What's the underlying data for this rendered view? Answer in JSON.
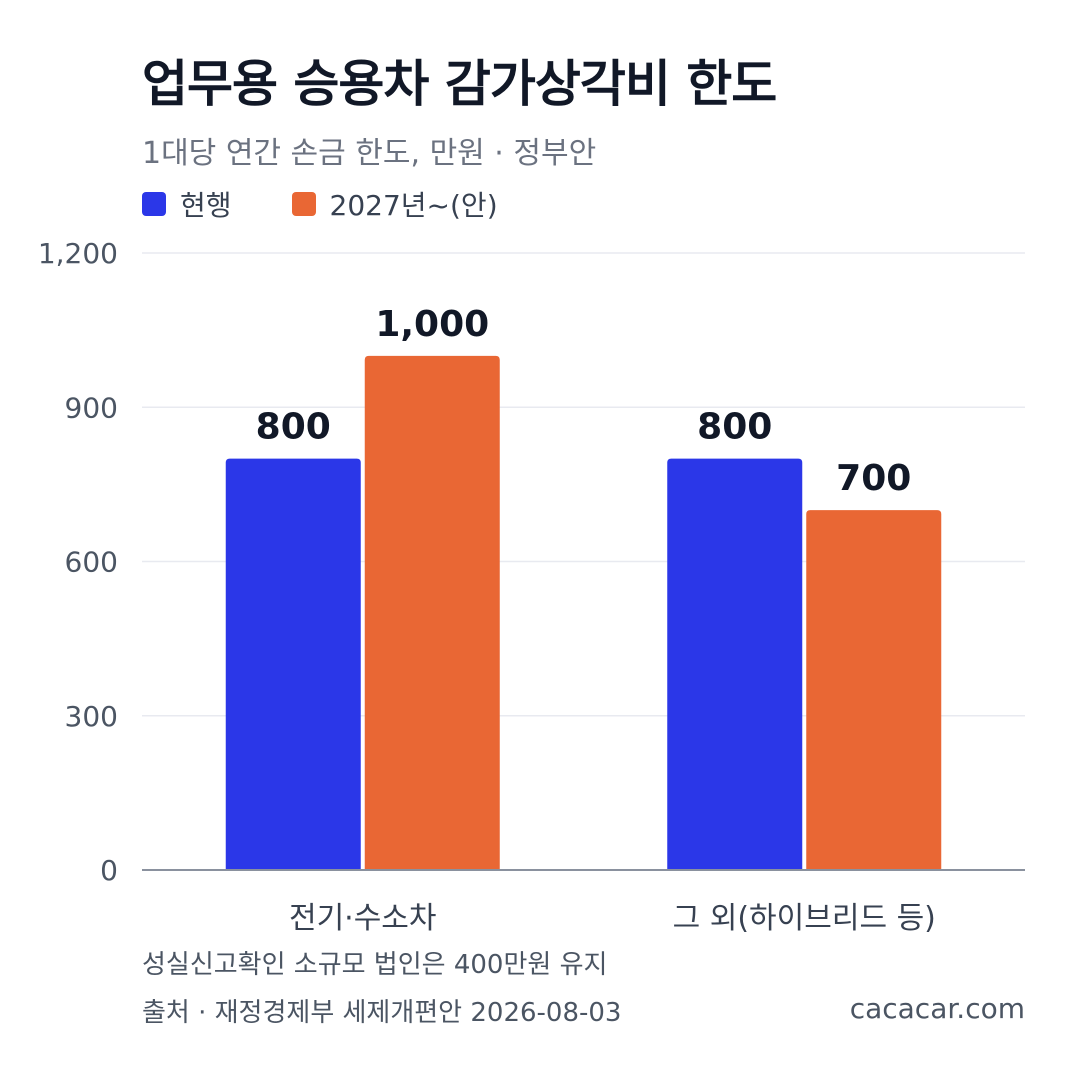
{
  "title": "업무용 승용차 감가상각비 한도",
  "subtitle": "1대당 연간 손금 한도, 만원 · 정부안",
  "legend": [
    {
      "label": "현행",
      "color": "#2b37e8"
    },
    {
      "label": "2027년~(안)",
      "color": "#e96734"
    }
  ],
  "chart_data": {
    "type": "bar",
    "categories": [
      "전기·수소차",
      "그 외(하이브리드 등)"
    ],
    "series": [
      {
        "name": "현행",
        "values": [
          800,
          800
        ],
        "color": "#2b37e8"
      },
      {
        "name": "2027년~(안)",
        "values": [
          1000,
          700
        ],
        "color": "#e96734"
      }
    ],
    "ylim": [
      0,
      1200
    ],
    "yticks": [
      0,
      300,
      600,
      900,
      1200
    ],
    "ytick_labels": [
      "0",
      "300",
      "600",
      "900",
      "1,200"
    ],
    "data_labels": [
      [
        "800",
        "800"
      ],
      [
        "1,000",
        "700"
      ]
    ],
    "grid": true,
    "legend_position": "top-left"
  },
  "footer": {
    "note": "성실신고확인 소규모 법인은 400만원 유지",
    "source": "출처 · 재정경제부 세제개편안 2026-08-03",
    "site": "cacacar.com"
  }
}
